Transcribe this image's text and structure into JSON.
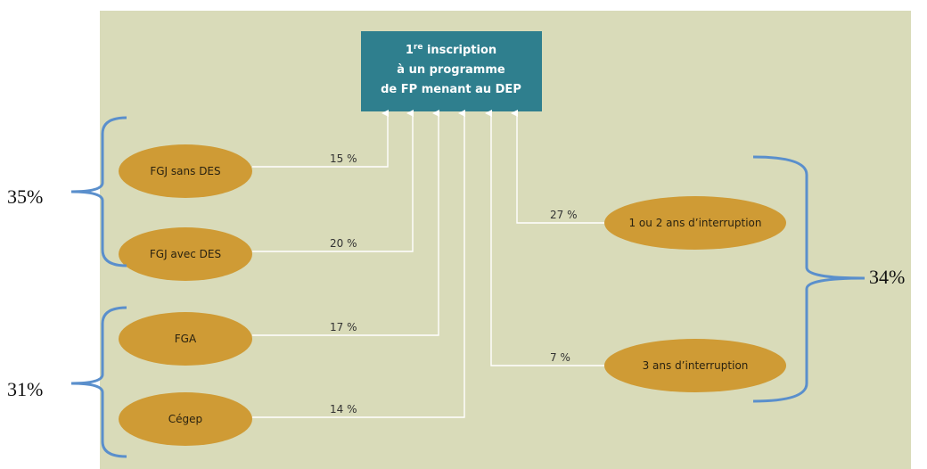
{
  "header": {
    "number": "1",
    "sup": "re",
    "rest": " inscription",
    "line2": "à un programme",
    "line3": "de FP menant au DEP"
  },
  "sources": [
    {
      "label": "FGJ sans DES",
      "share": "15 %"
    },
    {
      "label": "FGJ avec DES",
      "share": "20 %"
    },
    {
      "label": "FGA",
      "share": "17 %"
    },
    {
      "label": "Cégep",
      "share": "14 %"
    },
    {
      "label": "1 ou 2 ans d’interruption",
      "share": "27 %"
    },
    {
      "label": "3 ans d’interruption",
      "share": "7 %"
    }
  ],
  "groups": [
    {
      "total": "35%"
    },
    {
      "total": "31%"
    },
    {
      "total": "34%"
    }
  ]
}
